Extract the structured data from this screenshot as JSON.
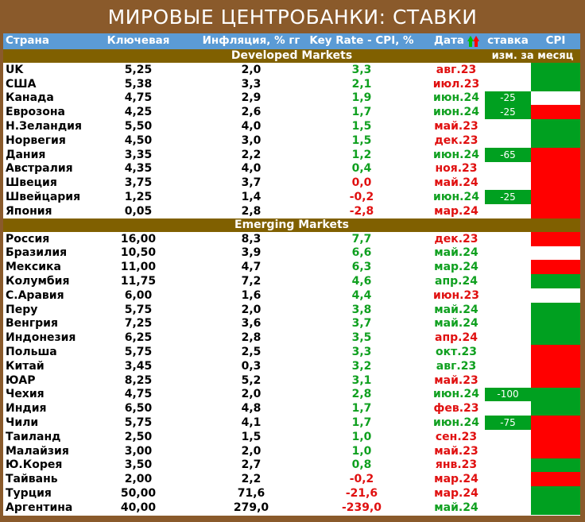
{
  "title": "МИРОВЫЕ ЦЕНТРОБАНКИ: СТАВКИ",
  "headers": {
    "country": "Страна",
    "key": "Ключевая",
    "inflation": "Инфляция, % гг",
    "real": "Key Rate - CPI, %",
    "date": "Дата",
    "rate": "ставка",
    "cpi": "CPI",
    "change": "изм. за месяц"
  },
  "colors": {
    "header_bg": "#5b9bd5",
    "section_bg": "#806000",
    "frame": "#8a5a2b",
    "positive": "#10a020",
    "negative": "#e01010",
    "green_fill": "#00a020",
    "red_fill": "#ff0000"
  },
  "developed": {
    "label": "Developed Markets",
    "rows": [
      {
        "country": "UK",
        "key": "5,25",
        "inf": "2,0",
        "real": "3,3",
        "real_sign": "pos",
        "date": "авг.23",
        "date_sign": "neg",
        "rate": "",
        "cpi": "green"
      },
      {
        "country": "США",
        "key": "5,38",
        "inf": "3,3",
        "real": "2,1",
        "real_sign": "pos",
        "date": "июл.23",
        "date_sign": "neg",
        "rate": "",
        "cpi": "green"
      },
      {
        "country": "Канада",
        "key": "4,75",
        "inf": "2,9",
        "real": "1,9",
        "real_sign": "pos",
        "date": "июн.24",
        "date_sign": "pos",
        "rate": "-25",
        "cpi": "white"
      },
      {
        "country": "Еврозона",
        "key": "4,25",
        "inf": "2,6",
        "real": "1,7",
        "real_sign": "pos",
        "date": "июн.24",
        "date_sign": "pos",
        "rate": "-25",
        "cpi": "red"
      },
      {
        "country": "Н.Зеландия",
        "key": "5,50",
        "inf": "4,0",
        "real": "1,5",
        "real_sign": "pos",
        "date": "май.23",
        "date_sign": "neg",
        "rate": "",
        "cpi": "green"
      },
      {
        "country": "Норвегия",
        "key": "4,50",
        "inf": "3,0",
        "real": "1,5",
        "real_sign": "pos",
        "date": "дек.23",
        "date_sign": "neg",
        "rate": "",
        "cpi": "green"
      },
      {
        "country": "Дания",
        "key": "3,35",
        "inf": "2,2",
        "real": "1,2",
        "real_sign": "pos",
        "date": "июн.24",
        "date_sign": "pos",
        "rate": "-65",
        "cpi": "red"
      },
      {
        "country": "Австралия",
        "key": "4,35",
        "inf": "4,0",
        "real": "0,4",
        "real_sign": "pos",
        "date": "ноя.23",
        "date_sign": "neg",
        "rate": "",
        "cpi": "red"
      },
      {
        "country": "Швеция",
        "key": "3,75",
        "inf": "3,7",
        "real": "0,0",
        "real_sign": "neg",
        "date": "май.24",
        "date_sign": "neg",
        "rate": "",
        "cpi": "red"
      },
      {
        "country": "Швейцария",
        "key": "1,25",
        "inf": "1,4",
        "real": "-0,2",
        "real_sign": "neg",
        "date": "июн.24",
        "date_sign": "pos",
        "rate": "-25",
        "cpi": "red"
      },
      {
        "country": "Япония",
        "key": "0,05",
        "inf": "2,8",
        "real": "-2,8",
        "real_sign": "neg",
        "date": "мар.24",
        "date_sign": "neg",
        "rate": "",
        "cpi": "red"
      }
    ]
  },
  "emerging": {
    "label": "Emerging Markets",
    "rows": [
      {
        "country": "Россия",
        "key": "16,00",
        "inf": "8,3",
        "real": "7,7",
        "real_sign": "pos",
        "date": "дек.23",
        "date_sign": "neg",
        "rate": "",
        "cpi": "red"
      },
      {
        "country": "Бразилия",
        "key": "10,50",
        "inf": "3,9",
        "real": "6,6",
        "real_sign": "pos",
        "date": "май.24",
        "date_sign": "pos",
        "rate": "",
        "cpi": "white"
      },
      {
        "country": "Мексика",
        "key": "11,00",
        "inf": "4,7",
        "real": "6,3",
        "real_sign": "pos",
        "date": "мар.24",
        "date_sign": "pos",
        "rate": "",
        "cpi": "red"
      },
      {
        "country": "Колумбия",
        "key": "11,75",
        "inf": "7,2",
        "real": "4,6",
        "real_sign": "pos",
        "date": "апр.24",
        "date_sign": "pos",
        "rate": "",
        "cpi": "green"
      },
      {
        "country": "С.Аравия",
        "key": "6,00",
        "inf": "1,6",
        "real": "4,4",
        "real_sign": "pos",
        "date": "июн.23",
        "date_sign": "neg",
        "rate": "",
        "cpi": "white"
      },
      {
        "country": "Перу",
        "key": "5,75",
        "inf": "2,0",
        "real": "3,8",
        "real_sign": "pos",
        "date": "май.24",
        "date_sign": "pos",
        "rate": "",
        "cpi": "green"
      },
      {
        "country": "Венгрия",
        "key": "7,25",
        "inf": "3,6",
        "real": "3,7",
        "real_sign": "pos",
        "date": "май.24",
        "date_sign": "pos",
        "rate": "",
        "cpi": "green"
      },
      {
        "country": "Индонезия",
        "key": "6,25",
        "inf": "2,8",
        "real": "3,5",
        "real_sign": "pos",
        "date": "апр.24",
        "date_sign": "neg",
        "rate": "",
        "cpi": "green"
      },
      {
        "country": "Польша",
        "key": "5,75",
        "inf": "2,5",
        "real": "3,3",
        "real_sign": "pos",
        "date": "окт.23",
        "date_sign": "pos",
        "rate": "",
        "cpi": "red"
      },
      {
        "country": "Китай",
        "key": "3,45",
        "inf": "0,3",
        "real": "3,2",
        "real_sign": "pos",
        "date": "авг.23",
        "date_sign": "pos",
        "rate": "",
        "cpi": "red"
      },
      {
        "country": "ЮАР",
        "key": "8,25",
        "inf": "5,2",
        "real": "3,1",
        "real_sign": "pos",
        "date": "май.23",
        "date_sign": "neg",
        "rate": "",
        "cpi": "red"
      },
      {
        "country": "Чехия",
        "key": "4,75",
        "inf": "2,0",
        "real": "2,8",
        "real_sign": "pos",
        "date": "июн.24",
        "date_sign": "pos",
        "rate": "-100",
        "cpi": "green"
      },
      {
        "country": "Индия",
        "key": "6,50",
        "inf": "4,8",
        "real": "1,7",
        "real_sign": "pos",
        "date": "фев.23",
        "date_sign": "neg",
        "rate": "",
        "cpi": "green"
      },
      {
        "country": "Чили",
        "key": "5,75",
        "inf": "4,1",
        "real": "1,7",
        "real_sign": "pos",
        "date": "июн.24",
        "date_sign": "pos",
        "rate": "-75",
        "cpi": "red"
      },
      {
        "country": "Таиланд",
        "key": "2,50",
        "inf": "1,5",
        "real": "1,0",
        "real_sign": "pos",
        "date": "сен.23",
        "date_sign": "neg",
        "rate": "",
        "cpi": "red"
      },
      {
        "country": "Малайзия",
        "key": "3,00",
        "inf": "2,0",
        "real": "1,0",
        "real_sign": "pos",
        "date": "май.23",
        "date_sign": "neg",
        "rate": "",
        "cpi": "red"
      },
      {
        "country": "Ю.Корея",
        "key": "3,50",
        "inf": "2,7",
        "real": "0,8",
        "real_sign": "pos",
        "date": "янв.23",
        "date_sign": "neg",
        "rate": "",
        "cpi": "green"
      },
      {
        "country": "Тайвань",
        "key": "2,00",
        "inf": "2,2",
        "real": "-0,2",
        "real_sign": "neg",
        "date": "мар.24",
        "date_sign": "neg",
        "rate": "",
        "cpi": "red"
      },
      {
        "country": "Турция",
        "key": "50,00",
        "inf": "71,6",
        "real": "-21,6",
        "real_sign": "neg",
        "date": "мар.24",
        "date_sign": "neg",
        "rate": "",
        "cpi": "green"
      },
      {
        "country": "Аргентина",
        "key": "40,00",
        "inf": "279,0",
        "real": "-239,0",
        "real_sign": "neg",
        "date": "май.24",
        "date_sign": "pos",
        "rate": "",
        "cpi": "green"
      }
    ]
  }
}
